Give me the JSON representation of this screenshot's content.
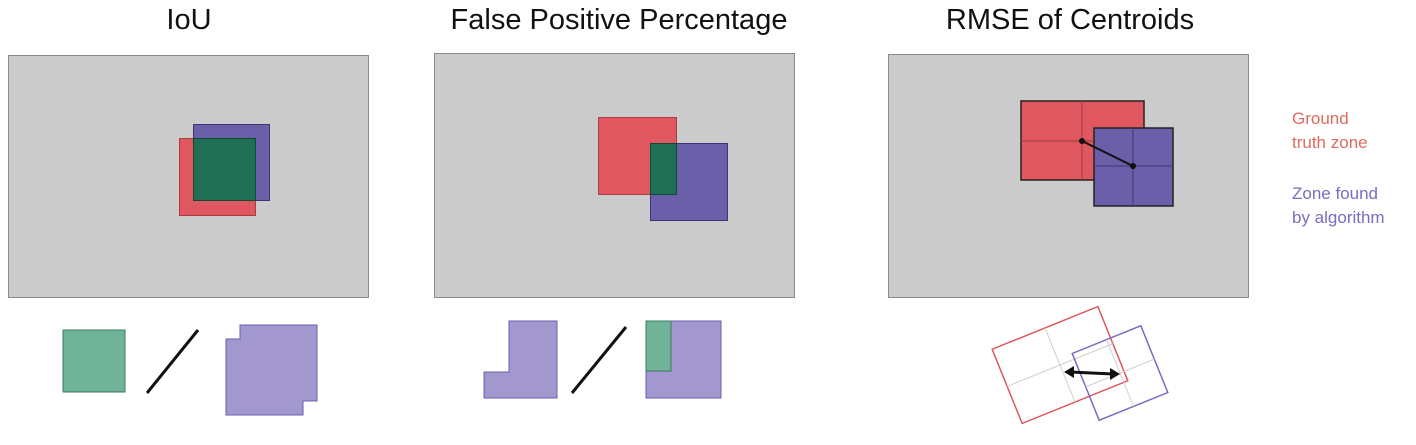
{
  "panels": [
    {
      "title": "IoU"
    },
    {
      "title": "False Positive Percentage"
    },
    {
      "title": "RMSE of Centroids"
    }
  ],
  "legend": {
    "ground_truth": [
      "Ground",
      "truth zone"
    ],
    "algorithm": [
      "Zone found",
      "by algorithm"
    ]
  },
  "colors": {
    "frame": "#cbcbcb",
    "ground_truth": "#e0575f",
    "algorithm": "#6a5fa8",
    "overlap": "#1f6f55",
    "overlap_light": "#6fb399",
    "algorithm_light": "#a397cf",
    "legend_gt_text": "#e06a5f",
    "legend_alg_text": "#7b6cbf"
  }
}
